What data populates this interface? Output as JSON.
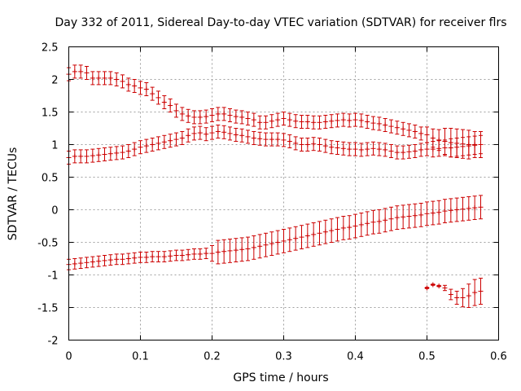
{
  "chart_data": {
    "type": "scatter",
    "title": "Day 332 of 2011, Sidereal Day-to-day VTEC variation (SDTVAR) for receiver flrs",
    "xlabel": "GPS time / hours",
    "ylabel": "SDTVAR / TECUs",
    "xlim": [
      0,
      0.6
    ],
    "ylim": [
      -2,
      2.5
    ],
    "xticks": [
      0,
      0.1,
      0.2,
      0.3,
      0.4,
      0.5,
      0.6
    ],
    "xtick_labels": [
      "0",
      "0.1",
      "0.2",
      "0.3",
      "0.4",
      "0.5",
      "0.6"
    ],
    "yticks": [
      -2,
      -1.5,
      -1,
      -0.5,
      0,
      0.5,
      1,
      1.5,
      2,
      2.5
    ],
    "ytick_labels": [
      "-2",
      "-1.5",
      "-1",
      "-0.5",
      "0",
      "0.5",
      "1",
      "1.5",
      "2",
      "2.5"
    ],
    "grid": true,
    "color": "#cc0000",
    "series": [
      {
        "name": "series-top",
        "x": [
          0.0,
          0.00833,
          0.01667,
          0.025,
          0.03333,
          0.04167,
          0.05,
          0.05833,
          0.06667,
          0.075,
          0.08333,
          0.09167,
          0.1,
          0.10833,
          0.11667,
          0.125,
          0.13333,
          0.14167,
          0.15,
          0.15833,
          0.16667,
          0.175,
          0.18333,
          0.19167,
          0.2,
          0.20833,
          0.21667,
          0.225,
          0.23333,
          0.24167,
          0.25,
          0.25833,
          0.26667,
          0.275,
          0.28333,
          0.29167,
          0.3,
          0.30833,
          0.31667,
          0.325,
          0.33333,
          0.34167,
          0.35,
          0.35833,
          0.36667,
          0.375,
          0.38333,
          0.39167,
          0.4,
          0.40833,
          0.41667,
          0.425,
          0.43333,
          0.44167,
          0.45,
          0.45833,
          0.46667,
          0.475,
          0.48333,
          0.49167,
          0.5,
          0.50833,
          0.51667,
          0.525,
          0.53333,
          0.54167,
          0.55,
          0.55833,
          0.56667,
          0.575
        ],
        "y": [
          2.08,
          2.12,
          2.12,
          2.1,
          2.02,
          2.02,
          2.02,
          2.02,
          2.0,
          1.97,
          1.92,
          1.9,
          1.87,
          1.85,
          1.78,
          1.72,
          1.65,
          1.6,
          1.52,
          1.47,
          1.44,
          1.42,
          1.42,
          1.43,
          1.45,
          1.47,
          1.47,
          1.45,
          1.43,
          1.42,
          1.4,
          1.38,
          1.34,
          1.34,
          1.36,
          1.38,
          1.4,
          1.38,
          1.36,
          1.35,
          1.35,
          1.34,
          1.34,
          1.35,
          1.36,
          1.37,
          1.38,
          1.37,
          1.38,
          1.37,
          1.35,
          1.33,
          1.32,
          1.3,
          1.28,
          1.26,
          1.24,
          1.22,
          1.2,
          1.17,
          1.15,
          1.1,
          1.07,
          1.05,
          1.03,
          1.02,
          1.01,
          1.0,
          1.0,
          1.0
        ],
        "err": [
          0.1,
          0.1,
          0.1,
          0.1,
          0.1,
          0.1,
          0.1,
          0.1,
          0.1,
          0.1,
          0.1,
          0.1,
          0.1,
          0.1,
          0.1,
          0.1,
          0.1,
          0.1,
          0.1,
          0.1,
          0.1,
          0.1,
          0.1,
          0.1,
          0.1,
          0.1,
          0.1,
          0.1,
          0.1,
          0.1,
          0.1,
          0.1,
          0.1,
          0.1,
          0.1,
          0.1,
          0.1,
          0.1,
          0.1,
          0.1,
          0.1,
          0.1,
          0.1,
          0.1,
          0.1,
          0.1,
          0.1,
          0.1,
          0.1,
          0.1,
          0.1,
          0.1,
          0.1,
          0.1,
          0.1,
          0.1,
          0.1,
          0.1,
          0.1,
          0.1,
          0.12,
          0.14,
          0.16,
          0.2,
          0.22,
          0.22,
          0.22,
          0.22,
          0.2,
          0.2
        ]
      },
      {
        "name": "series-middle",
        "x": [
          0.0,
          0.00833,
          0.01667,
          0.025,
          0.03333,
          0.04167,
          0.05,
          0.05833,
          0.06667,
          0.075,
          0.08333,
          0.09167,
          0.1,
          0.10833,
          0.11667,
          0.125,
          0.13333,
          0.14167,
          0.15,
          0.15833,
          0.16667,
          0.175,
          0.18333,
          0.19167,
          0.2,
          0.20833,
          0.21667,
          0.225,
          0.23333,
          0.24167,
          0.25,
          0.25833,
          0.26667,
          0.275,
          0.28333,
          0.29167,
          0.3,
          0.30833,
          0.31667,
          0.325,
          0.33333,
          0.34167,
          0.35,
          0.35833,
          0.36667,
          0.375,
          0.38333,
          0.39167,
          0.4,
          0.40833,
          0.41667,
          0.425,
          0.43333,
          0.44167,
          0.45,
          0.45833,
          0.46667,
          0.475,
          0.48333,
          0.49167,
          0.5,
          0.50833,
          0.51667,
          0.525,
          0.53333,
          0.54167,
          0.55,
          0.55833,
          0.56667,
          0.575
        ],
        "y": [
          0.8,
          0.82,
          0.82,
          0.82,
          0.83,
          0.84,
          0.85,
          0.86,
          0.87,
          0.88,
          0.9,
          0.93,
          0.96,
          0.98,
          1.0,
          1.02,
          1.04,
          1.06,
          1.08,
          1.1,
          1.14,
          1.17,
          1.18,
          1.16,
          1.18,
          1.2,
          1.19,
          1.17,
          1.15,
          1.14,
          1.12,
          1.1,
          1.09,
          1.08,
          1.08,
          1.08,
          1.07,
          1.05,
          1.02,
          1.0,
          1.0,
          1.01,
          1.0,
          0.98,
          0.96,
          0.95,
          0.94,
          0.93,
          0.93,
          0.92,
          0.93,
          0.94,
          0.93,
          0.92,
          0.9,
          0.88,
          0.88,
          0.89,
          0.9,
          0.92,
          0.93,
          0.93,
          0.94,
          0.95,
          0.95,
          0.96,
          0.97,
          0.98,
          0.99,
          1.0
        ],
        "err": [
          0.1,
          0.1,
          0.1,
          0.1,
          0.1,
          0.1,
          0.1,
          0.1,
          0.1,
          0.1,
          0.1,
          0.1,
          0.1,
          0.1,
          0.1,
          0.1,
          0.1,
          0.1,
          0.1,
          0.1,
          0.1,
          0.1,
          0.1,
          0.1,
          0.1,
          0.1,
          0.1,
          0.1,
          0.1,
          0.1,
          0.1,
          0.1,
          0.1,
          0.1,
          0.1,
          0.1,
          0.1,
          0.1,
          0.1,
          0.1,
          0.1,
          0.1,
          0.1,
          0.1,
          0.1,
          0.1,
          0.1,
          0.1,
          0.1,
          0.1,
          0.1,
          0.1,
          0.1,
          0.1,
          0.1,
          0.1,
          0.1,
          0.1,
          0.1,
          0.1,
          0.1,
          0.12,
          0.12,
          0.12,
          0.14,
          0.14,
          0.14,
          0.14,
          0.14,
          0.14
        ]
      },
      {
        "name": "series-bottom",
        "x": [
          0.0,
          0.00833,
          0.01667,
          0.025,
          0.03333,
          0.04167,
          0.05,
          0.05833,
          0.06667,
          0.075,
          0.08333,
          0.09167,
          0.1,
          0.10833,
          0.11667,
          0.125,
          0.13333,
          0.14167,
          0.15,
          0.15833,
          0.16667,
          0.175,
          0.18333,
          0.19167,
          0.2,
          0.20833,
          0.21667,
          0.225,
          0.23333,
          0.24167,
          0.25,
          0.25833,
          0.26667,
          0.275,
          0.28333,
          0.29167,
          0.3,
          0.30833,
          0.31667,
          0.325,
          0.33333,
          0.34167,
          0.35,
          0.35833,
          0.36667,
          0.375,
          0.38333,
          0.39167,
          0.4,
          0.40833,
          0.41667,
          0.425,
          0.43333,
          0.44167,
          0.45,
          0.45833,
          0.46667,
          0.475,
          0.48333,
          0.49167,
          0.5,
          0.50833,
          0.51667,
          0.525,
          0.53333,
          0.54167,
          0.55,
          0.55833,
          0.56667,
          0.575
        ],
        "y": [
          -0.84,
          -0.83,
          -0.82,
          -0.81,
          -0.8,
          -0.79,
          -0.78,
          -0.77,
          -0.76,
          -0.76,
          -0.75,
          -0.74,
          -0.73,
          -0.73,
          -0.72,
          -0.72,
          -0.72,
          -0.71,
          -0.7,
          -0.7,
          -0.69,
          -0.68,
          -0.68,
          -0.67,
          -0.67,
          -0.65,
          -0.64,
          -0.63,
          -0.62,
          -0.61,
          -0.6,
          -0.58,
          -0.56,
          -0.54,
          -0.52,
          -0.5,
          -0.48,
          -0.46,
          -0.44,
          -0.42,
          -0.4,
          -0.38,
          -0.36,
          -0.34,
          -0.32,
          -0.3,
          -0.28,
          -0.27,
          -0.25,
          -0.23,
          -0.21,
          -0.19,
          -0.18,
          -0.16,
          -0.14,
          -0.12,
          -0.11,
          -0.1,
          -0.09,
          -0.08,
          -0.06,
          -0.05,
          -0.04,
          -0.02,
          -0.01,
          0.0,
          0.01,
          0.02,
          0.03,
          0.04
        ],
        "err": [
          0.08,
          0.08,
          0.08,
          0.08,
          0.08,
          0.08,
          0.08,
          0.08,
          0.08,
          0.08,
          0.08,
          0.08,
          0.08,
          0.08,
          0.08,
          0.08,
          0.08,
          0.08,
          0.08,
          0.08,
          0.08,
          0.08,
          0.08,
          0.08,
          0.12,
          0.18,
          0.18,
          0.18,
          0.18,
          0.18,
          0.18,
          0.18,
          0.18,
          0.18,
          0.18,
          0.18,
          0.18,
          0.18,
          0.18,
          0.18,
          0.18,
          0.18,
          0.18,
          0.18,
          0.18,
          0.18,
          0.18,
          0.18,
          0.18,
          0.18,
          0.18,
          0.18,
          0.18,
          0.18,
          0.18,
          0.18,
          0.18,
          0.18,
          0.18,
          0.18,
          0.18,
          0.18,
          0.18,
          0.18,
          0.18,
          0.18,
          0.18,
          0.18,
          0.18,
          0.18
        ]
      },
      {
        "name": "series-late",
        "x": [
          0.5,
          0.50833,
          0.51667,
          0.525,
          0.53333,
          0.54167,
          0.55,
          0.55833,
          0.56667,
          0.575
        ],
        "y": [
          -1.2,
          -1.15,
          -1.17,
          -1.2,
          -1.3,
          -1.35,
          -1.35,
          -1.32,
          -1.27,
          -1.25
        ],
        "err": [
          0.01,
          0.01,
          0.01,
          0.04,
          0.08,
          0.1,
          0.14,
          0.18,
          0.2,
          0.2
        ]
      }
    ]
  }
}
